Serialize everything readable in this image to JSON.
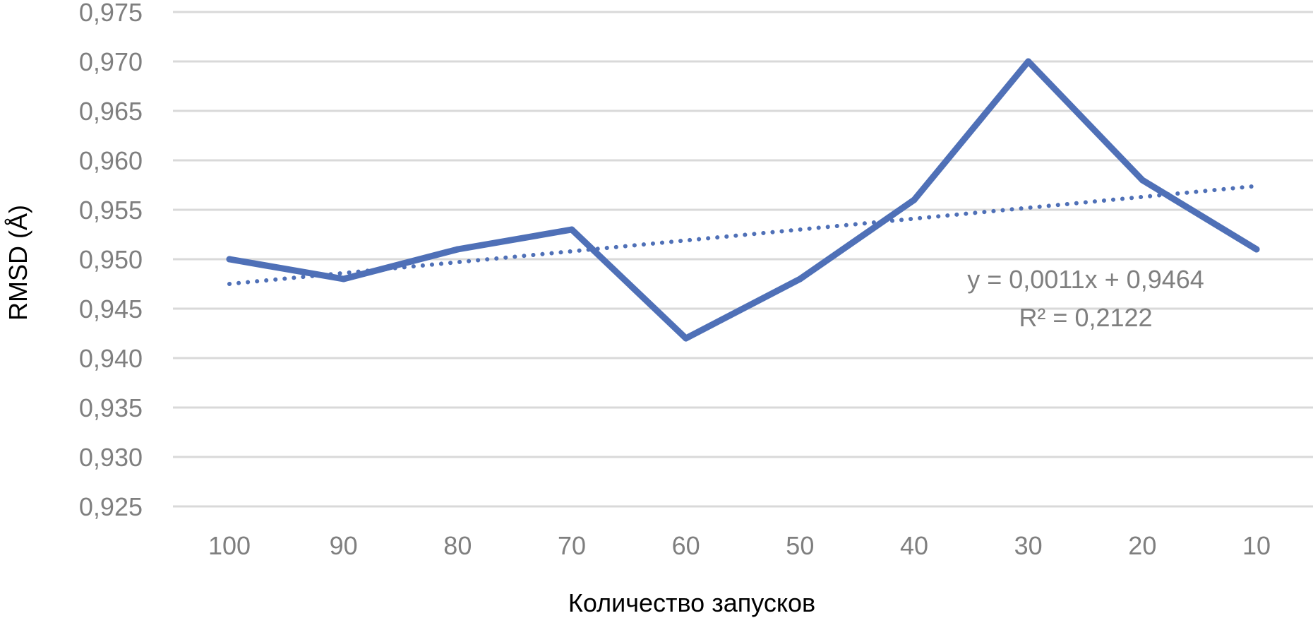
{
  "chart_data": {
    "type": "line",
    "title": "",
    "xlabel": "Количество запусков",
    "ylabel": "RMSD (Å)",
    "categories": [
      "100",
      "90",
      "80",
      "70",
      "60",
      "50",
      "40",
      "30",
      "20",
      "10"
    ],
    "series": [
      {
        "values": [
          0.95,
          0.948,
          0.951,
          0.953,
          0.942,
          0.948,
          0.956,
          0.97,
          0.958,
          0.951
        ],
        "color": "#4f70b7",
        "style": "solid"
      }
    ],
    "trendline": {
      "type": "linear",
      "slope": 0.0011,
      "intercept": 0.9464,
      "color": "#4f70b7",
      "style": "dotted",
      "equation": "y = 0,0011x + 0,9464",
      "r_squared": "R² = 0,2122"
    },
    "ylim": [
      0.925,
      0.975
    ],
    "y_step": 0.005,
    "y_tick_labels": [
      "0,925",
      "0,930",
      "0,935",
      "0,940",
      "0,945",
      "0,950",
      "0,955",
      "0,960",
      "0,965",
      "0,970",
      "0,975"
    ],
    "grid": true,
    "legend": "none"
  }
}
